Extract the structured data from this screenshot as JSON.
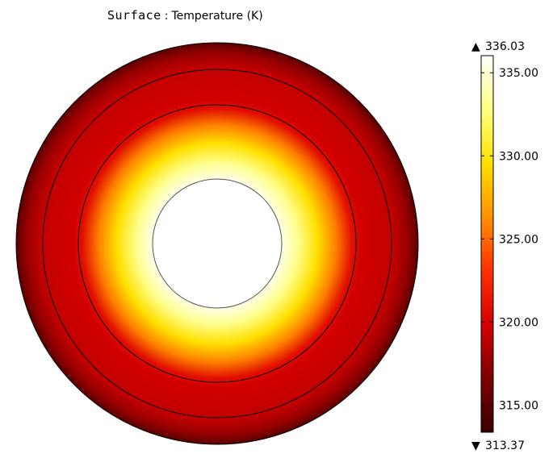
{
  "title": {
    "expression": "Surface",
    "separator": ":",
    "quantity": "Temperature (K)"
  },
  "chart_data": {
    "type": "heatmap",
    "title": "Surface : Temperature (K)",
    "plot": "2D surface plot of an annular cross-section; hot (white/yellow) near the inner hole, cooling (dark red) toward the outer rim",
    "colormap": "ThermalLight",
    "colors": [
      "#3a0000",
      "#7d0000",
      "#d40000",
      "#ff3000",
      "#ff9000",
      "#ffe000",
      "#ffff80",
      "#ffffff"
    ],
    "range": [
      313.37,
      336.03
    ],
    "max_label": "336.03",
    "min_label": "313.37",
    "ticks": [
      335.0,
      330.0,
      325.0,
      320.0,
      315.0
    ],
    "tick_labels": [
      "335.00",
      "330.00",
      "325.00",
      "320.00",
      "315.00"
    ],
    "max_marker": "▲",
    "min_marker": "▼"
  }
}
